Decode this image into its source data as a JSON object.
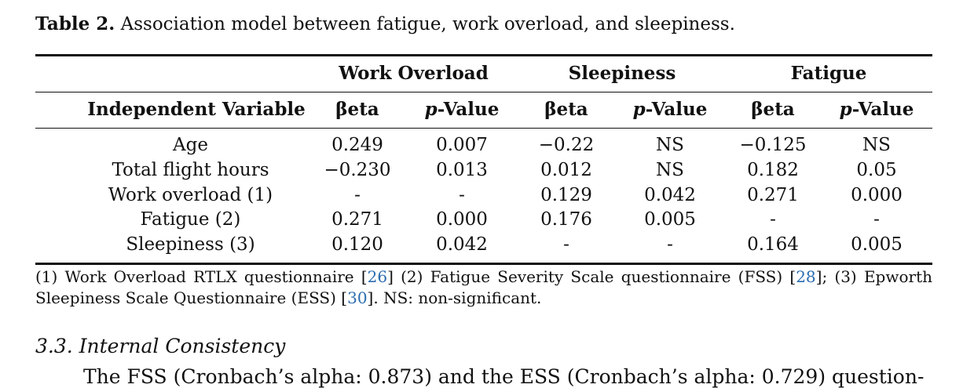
{
  "caption": {
    "label": "Table 2.",
    "text": "Association model between fatigue, work overload, and sleepiness."
  },
  "table": {
    "groups": [
      "Work Overload",
      "Sleepiness",
      "Fatigue"
    ],
    "first_header": "Independent Variable",
    "beta": "βeta",
    "p_letter": "p",
    "p_rest": "-Value",
    "rows": [
      {
        "label": "Age",
        "values": [
          "0.249",
          "0.007",
          "−0.22",
          "NS",
          "−0.125",
          "NS"
        ]
      },
      {
        "label": "Total flight hours",
        "values": [
          "−0.230",
          "0.013",
          "0.012",
          "NS",
          "0.182",
          "0.05"
        ]
      },
      {
        "label": "Work overload (1)",
        "values": [
          "-",
          "-",
          "0.129",
          "0.042",
          "0.271",
          "0.000"
        ]
      },
      {
        "label": "Fatigue (2)",
        "values": [
          "0.271",
          "0.000",
          "0.176",
          "0.005",
          "-",
          "-"
        ]
      },
      {
        "label": "Sleepiness (3)",
        "values": [
          "0.120",
          "0.042",
          "-",
          "-",
          "0.164",
          "0.005"
        ]
      }
    ]
  },
  "note": {
    "t1": "(1) Work Overload RTLX questionnaire [",
    "r1": "26",
    "t2": "] (2) Fatigue Severity Scale questionnaire (FSS) [",
    "r2": "28",
    "t3": "]; (3) Epworth Sleepiness Scale Questionnaire (ESS) [",
    "r3": "30",
    "t4": "]. NS: non-significant."
  },
  "section_heading": "3.3. Internal Consistency",
  "paragraph_start": "The FSS (Cronbach’s alpha: 0.873) and the ESS (Cronbach’s alpha: 0.729) question-"
}
